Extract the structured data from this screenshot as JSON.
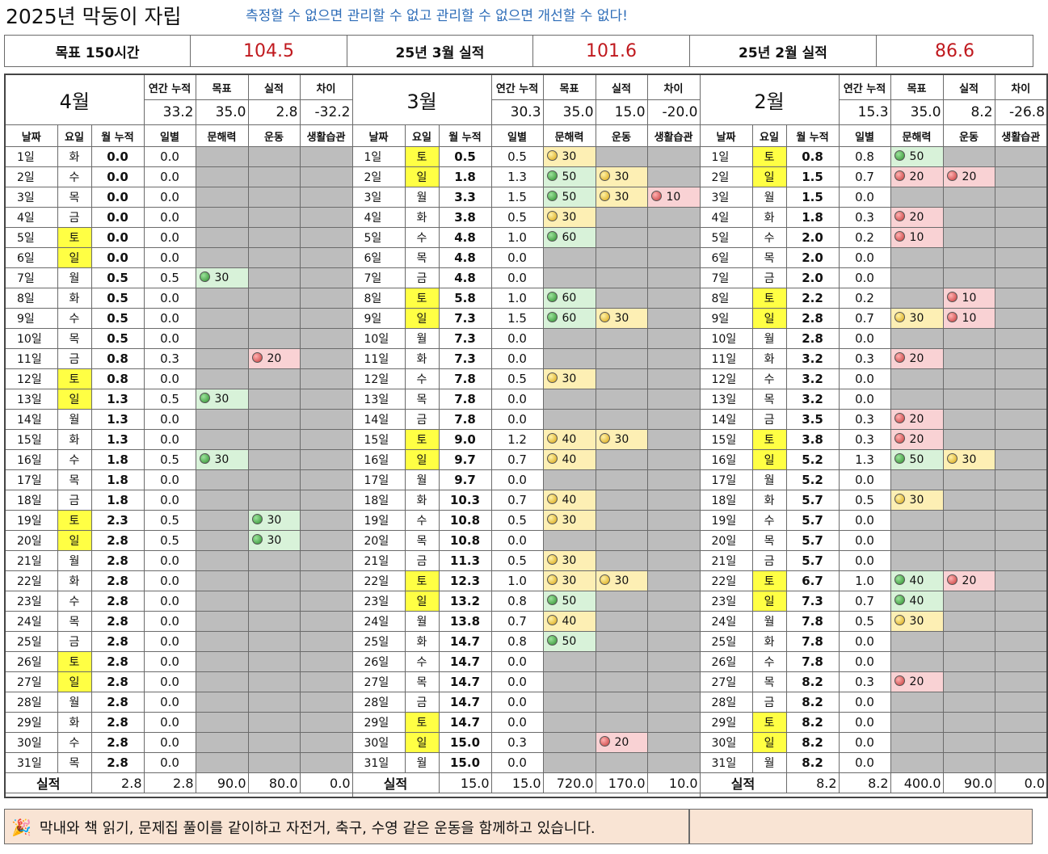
{
  "header": {
    "title": "2025년 막둥이 자립",
    "slogan": "측정할 수 없으면 관리할 수 없고 관리할 수 없으면 개선할 수 없다!"
  },
  "summary": {
    "goal_label": "목표 150시간",
    "goal_value": "104.5",
    "mar_label": "25년 3월 실적",
    "mar_value": "101.6",
    "feb_label": "25년 2월 실적",
    "feb_value": "86.6"
  },
  "colors": {
    "sat_sun": "#ffff44",
    "inactive": "#bdbdbd",
    "green": "#d8f2d9",
    "yellow": "#fdefb4",
    "red": "#f9d2d4",
    "value_red": "#c0191e"
  },
  "stat_labels": [
    "연간 누적",
    "목표",
    "실적",
    "차이"
  ],
  "col_headers": [
    "날짜",
    "요일",
    "월 누적",
    "일별",
    "문해력",
    "운동",
    "생활습관"
  ],
  "total_label": "실적",
  "months": [
    {
      "name": "4월",
      "stats": [
        "33.2",
        "35.0",
        "2.8",
        "-32.2"
      ],
      "totals": [
        "2.8",
        "2.8",
        "90.0",
        "80.0",
        "0.0"
      ],
      "rows": [
        [
          "1일",
          "화",
          "0.0",
          "0.0",
          null,
          null,
          null
        ],
        [
          "2일",
          "수",
          "0.0",
          "0.0",
          null,
          null,
          null
        ],
        [
          "3일",
          "목",
          "0.0",
          "0.0",
          null,
          null,
          null
        ],
        [
          "4일",
          "금",
          "0.0",
          "0.0",
          null,
          null,
          null
        ],
        [
          "5일",
          "토",
          "0.0",
          "0.0",
          null,
          null,
          null
        ],
        [
          "6일",
          "일",
          "0.0",
          "0.0",
          null,
          null,
          null
        ],
        [
          "7일",
          "월",
          "0.5",
          "0.5",
          [
            "g",
            "30"
          ],
          null,
          null
        ],
        [
          "8일",
          "화",
          "0.5",
          "0.0",
          null,
          null,
          null
        ],
        [
          "9일",
          "수",
          "0.5",
          "0.0",
          null,
          null,
          null
        ],
        [
          "10일",
          "목",
          "0.5",
          "0.0",
          null,
          null,
          null
        ],
        [
          "11일",
          "금",
          "0.8",
          "0.3",
          null,
          [
            "r",
            "20"
          ],
          null
        ],
        [
          "12일",
          "토",
          "0.8",
          "0.0",
          null,
          null,
          null
        ],
        [
          "13일",
          "일",
          "1.3",
          "0.5",
          [
            "g",
            "30"
          ],
          null,
          null
        ],
        [
          "14일",
          "월",
          "1.3",
          "0.0",
          null,
          null,
          null
        ],
        [
          "15일",
          "화",
          "1.3",
          "0.0",
          null,
          null,
          null
        ],
        [
          "16일",
          "수",
          "1.8",
          "0.5",
          [
            "g",
            "30"
          ],
          null,
          null
        ],
        [
          "17일",
          "목",
          "1.8",
          "0.0",
          null,
          null,
          null
        ],
        [
          "18일",
          "금",
          "1.8",
          "0.0",
          null,
          null,
          null
        ],
        [
          "19일",
          "토",
          "2.3",
          "0.5",
          null,
          [
            "g",
            "30"
          ],
          null
        ],
        [
          "20일",
          "일",
          "2.8",
          "0.5",
          null,
          [
            "g",
            "30"
          ],
          null
        ],
        [
          "21일",
          "월",
          "2.8",
          "0.0",
          null,
          null,
          null
        ],
        [
          "22일",
          "화",
          "2.8",
          "0.0",
          null,
          null,
          null
        ],
        [
          "23일",
          "수",
          "2.8",
          "0.0",
          null,
          null,
          null
        ],
        [
          "24일",
          "목",
          "2.8",
          "0.0",
          null,
          null,
          null
        ],
        [
          "25일",
          "금",
          "2.8",
          "0.0",
          null,
          null,
          null
        ],
        [
          "26일",
          "토",
          "2.8",
          "0.0",
          null,
          null,
          null
        ],
        [
          "27일",
          "일",
          "2.8",
          "0.0",
          null,
          null,
          null
        ],
        [
          "28일",
          "월",
          "2.8",
          "0.0",
          null,
          null,
          null
        ],
        [
          "29일",
          "화",
          "2.8",
          "0.0",
          null,
          null,
          null
        ],
        [
          "30일",
          "수",
          "2.8",
          "0.0",
          null,
          null,
          null
        ],
        [
          "31일",
          "목",
          "2.8",
          "0.0",
          null,
          null,
          null
        ]
      ]
    },
    {
      "name": "3월",
      "stats": [
        "30.3",
        "35.0",
        "15.0",
        "-20.0"
      ],
      "totals": [
        "15.0",
        "15.0",
        "720.0",
        "170.0",
        "10.0"
      ],
      "rows": [
        [
          "1일",
          "토",
          "0.5",
          "0.5",
          [
            "y",
            "30"
          ],
          null,
          null
        ],
        [
          "2일",
          "일",
          "1.8",
          "1.3",
          [
            "g",
            "50"
          ],
          [
            "y",
            "30"
          ],
          null
        ],
        [
          "3일",
          "월",
          "3.3",
          "1.5",
          [
            "g",
            "50"
          ],
          [
            "y",
            "30"
          ],
          [
            "r",
            "10"
          ]
        ],
        [
          "4일",
          "화",
          "3.8",
          "0.5",
          [
            "y",
            "30"
          ],
          null,
          null
        ],
        [
          "5일",
          "수",
          "4.8",
          "1.0",
          [
            "g",
            "60"
          ],
          null,
          null
        ],
        [
          "6일",
          "목",
          "4.8",
          "0.0",
          null,
          null,
          null
        ],
        [
          "7일",
          "금",
          "4.8",
          "0.0",
          null,
          null,
          null
        ],
        [
          "8일",
          "토",
          "5.8",
          "1.0",
          [
            "g",
            "60"
          ],
          null,
          null
        ],
        [
          "9일",
          "일",
          "7.3",
          "1.5",
          [
            "g",
            "60"
          ],
          [
            "y",
            "30"
          ],
          null
        ],
        [
          "10일",
          "월",
          "7.3",
          "0.0",
          null,
          null,
          null
        ],
        [
          "11일",
          "화",
          "7.3",
          "0.0",
          null,
          null,
          null
        ],
        [
          "12일",
          "수",
          "7.8",
          "0.5",
          [
            "y",
            "30"
          ],
          null,
          null
        ],
        [
          "13일",
          "목",
          "7.8",
          "0.0",
          null,
          null,
          null
        ],
        [
          "14일",
          "금",
          "7.8",
          "0.0",
          null,
          null,
          null
        ],
        [
          "15일",
          "토",
          "9.0",
          "1.2",
          [
            "y",
            "40"
          ],
          [
            "y",
            "30"
          ],
          null
        ],
        [
          "16일",
          "일",
          "9.7",
          "0.7",
          [
            "y",
            "40"
          ],
          null,
          null
        ],
        [
          "17일",
          "월",
          "9.7",
          "0.0",
          null,
          null,
          null
        ],
        [
          "18일",
          "화",
          "10.3",
          "0.7",
          [
            "y",
            "40"
          ],
          null,
          null
        ],
        [
          "19일",
          "수",
          "10.8",
          "0.5",
          [
            "y",
            "30"
          ],
          null,
          null
        ],
        [
          "20일",
          "목",
          "10.8",
          "0.0",
          null,
          null,
          null
        ],
        [
          "21일",
          "금",
          "11.3",
          "0.5",
          [
            "y",
            "30"
          ],
          null,
          null
        ],
        [
          "22일",
          "토",
          "12.3",
          "1.0",
          [
            "y",
            "30"
          ],
          [
            "y",
            "30"
          ],
          null
        ],
        [
          "23일",
          "일",
          "13.2",
          "0.8",
          [
            "g",
            "50"
          ],
          null,
          null
        ],
        [
          "24일",
          "월",
          "13.8",
          "0.7",
          [
            "y",
            "40"
          ],
          null,
          null
        ],
        [
          "25일",
          "화",
          "14.7",
          "0.8",
          [
            "g",
            "50"
          ],
          null,
          null
        ],
        [
          "26일",
          "수",
          "14.7",
          "0.0",
          null,
          null,
          null
        ],
        [
          "27일",
          "목",
          "14.7",
          "0.0",
          null,
          null,
          null
        ],
        [
          "28일",
          "금",
          "14.7",
          "0.0",
          null,
          null,
          null
        ],
        [
          "29일",
          "토",
          "14.7",
          "0.0",
          null,
          null,
          null
        ],
        [
          "30일",
          "일",
          "15.0",
          "0.3",
          null,
          [
            "r",
            "20"
          ],
          null
        ],
        [
          "31일",
          "월",
          "15.0",
          "0.0",
          null,
          null,
          null
        ]
      ]
    },
    {
      "name": "2월",
      "stats": [
        "15.3",
        "35.0",
        "8.2",
        "-26.8"
      ],
      "totals": [
        "8.2",
        "8.2",
        "400.0",
        "90.0",
        "0.0"
      ],
      "rows": [
        [
          "1일",
          "토",
          "0.8",
          "0.8",
          [
            "g",
            "50"
          ],
          null,
          null
        ],
        [
          "2일",
          "일",
          "1.5",
          "0.7",
          [
            "r",
            "20"
          ],
          [
            "r",
            "20"
          ],
          null
        ],
        [
          "3일",
          "월",
          "1.5",
          "0.0",
          null,
          null,
          null
        ],
        [
          "4일",
          "화",
          "1.8",
          "0.3",
          [
            "r",
            "20"
          ],
          null,
          null
        ],
        [
          "5일",
          "수",
          "2.0",
          "0.2",
          [
            "r",
            "10"
          ],
          null,
          null
        ],
        [
          "6일",
          "목",
          "2.0",
          "0.0",
          null,
          null,
          null
        ],
        [
          "7일",
          "금",
          "2.0",
          "0.0",
          null,
          null,
          null
        ],
        [
          "8일",
          "토",
          "2.2",
          "0.2",
          null,
          [
            "r",
            "10"
          ],
          null
        ],
        [
          "9일",
          "일",
          "2.8",
          "0.7",
          [
            "y",
            "30"
          ],
          [
            "r",
            "10"
          ],
          null
        ],
        [
          "10일",
          "월",
          "2.8",
          "0.0",
          null,
          null,
          null
        ],
        [
          "11일",
          "화",
          "3.2",
          "0.3",
          [
            "r",
            "20"
          ],
          null,
          null
        ],
        [
          "12일",
          "수",
          "3.2",
          "0.0",
          null,
          null,
          null
        ],
        [
          "13일",
          "목",
          "3.2",
          "0.0",
          null,
          null,
          null
        ],
        [
          "14일",
          "금",
          "3.5",
          "0.3",
          [
            "r",
            "20"
          ],
          null,
          null
        ],
        [
          "15일",
          "토",
          "3.8",
          "0.3",
          [
            "r",
            "20"
          ],
          null,
          null
        ],
        [
          "16일",
          "일",
          "5.2",
          "1.3",
          [
            "g",
            "50"
          ],
          [
            "y",
            "30"
          ],
          null
        ],
        [
          "17일",
          "월",
          "5.2",
          "0.0",
          null,
          null,
          null
        ],
        [
          "18일",
          "화",
          "5.7",
          "0.5",
          [
            "y",
            "30"
          ],
          null,
          null
        ],
        [
          "19일",
          "수",
          "5.7",
          "0.0",
          null,
          null,
          null
        ],
        [
          "20일",
          "목",
          "5.7",
          "0.0",
          null,
          null,
          null
        ],
        [
          "21일",
          "금",
          "5.7",
          "0.0",
          null,
          null,
          null
        ],
        [
          "22일",
          "토",
          "6.7",
          "1.0",
          [
            "g",
            "40"
          ],
          [
            "r",
            "20"
          ],
          null
        ],
        [
          "23일",
          "일",
          "7.3",
          "0.7",
          [
            "g",
            "40"
          ],
          null,
          null
        ],
        [
          "24일",
          "월",
          "7.8",
          "0.5",
          [
            "y",
            "30"
          ],
          null,
          null
        ],
        [
          "25일",
          "화",
          "7.8",
          "0.0",
          null,
          null,
          null
        ],
        [
          "26일",
          "수",
          "7.8",
          "0.0",
          null,
          null,
          null
        ],
        [
          "27일",
          "목",
          "8.2",
          "0.3",
          [
            "r",
            "20"
          ],
          null,
          null
        ],
        [
          "28일",
          "금",
          "8.2",
          "0.0",
          null,
          null,
          null
        ],
        [
          "29일",
          "토",
          "8.2",
          "0.0",
          null,
          null,
          null
        ],
        [
          "30일",
          "일",
          "8.2",
          "0.0",
          null,
          null,
          null
        ],
        [
          "31일",
          "월",
          "8.2",
          "0.0",
          null,
          null,
          null
        ]
      ]
    }
  ],
  "footnote": {
    "icon": "cheer-icon",
    "text": "막내와 책 읽기, 문제집 풀이를 같이하고 자전거, 축구, 수영 같은 운동을 함께하고 있습니다."
  }
}
